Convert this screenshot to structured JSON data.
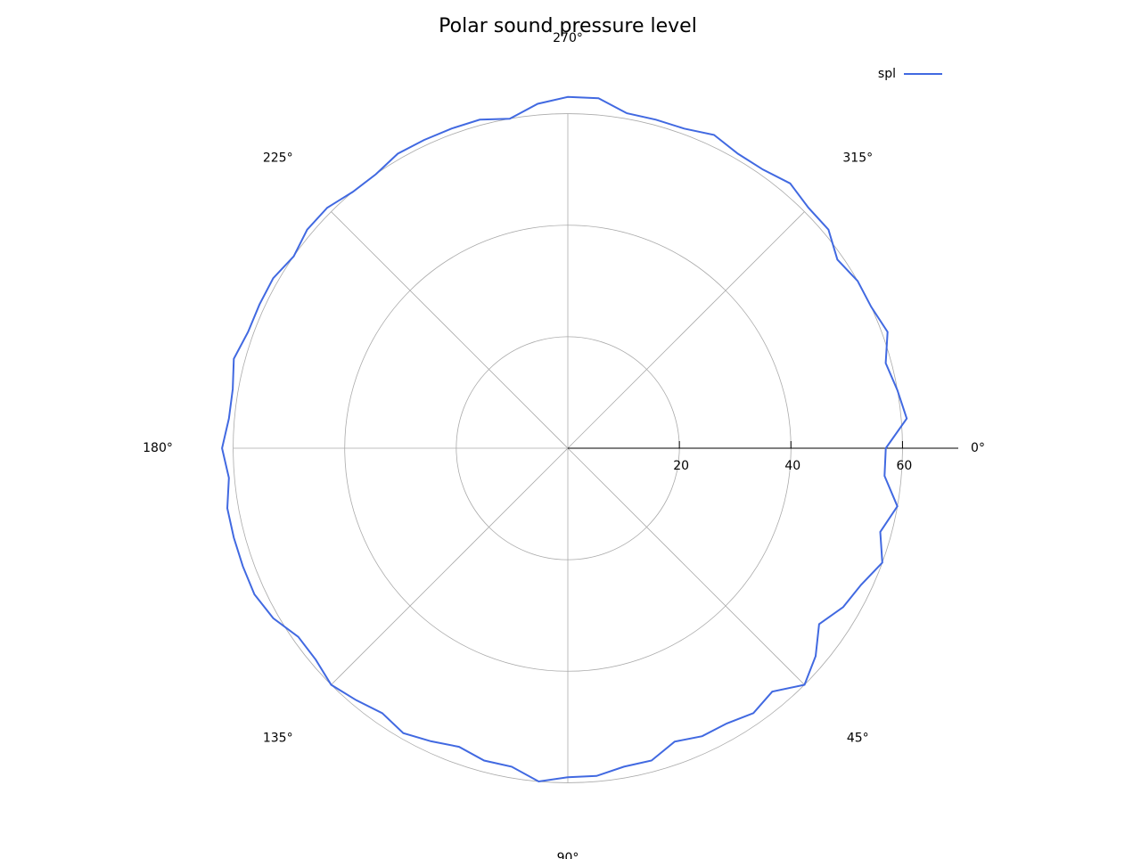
{
  "chart_data": {
    "type": "polar",
    "title": "Polar sound pressure level",
    "theta": [
      0,
      5,
      10,
      15,
      20,
      25,
      30,
      35,
      40,
      45,
      50,
      55,
      60,
      65,
      70,
      75,
      80,
      85,
      90,
      95,
      100,
      105,
      110,
      115,
      120,
      125,
      130,
      135,
      140,
      145,
      150,
      155,
      160,
      165,
      170,
      175,
      180,
      185,
      190,
      195,
      200,
      205,
      210,
      215,
      220,
      225,
      230,
      235,
      240,
      245,
      250,
      255,
      260,
      265,
      270,
      275,
      280,
      285,
      290,
      295,
      300,
      305,
      310,
      315,
      320,
      325,
      330,
      335,
      340,
      345,
      350,
      355
    ],
    "series": [
      {
        "name": "spl",
        "color": "#4169e1",
        "values": [
          57,
          57,
          60,
          58,
          60,
          58,
          57,
          55,
          58,
          60,
          57,
          58,
          57,
          57,
          56,
          58,
          58,
          59,
          59,
          60,
          58,
          58,
          57,
          58,
          59,
          58,
          59,
          60,
          59,
          59,
          61,
          62,
          62,
          62,
          62,
          61,
          62,
          61,
          61,
          62,
          61,
          61,
          61,
          60,
          61,
          61,
          60,
          60,
          61,
          61,
          61,
          61,
          60,
          62,
          63,
          63,
          61,
          61,
          61,
          62,
          61,
          61,
          62,
          61,
          61,
          59,
          60,
          60,
          61,
          59,
          60,
          61
        ]
      }
    ],
    "rlim": [
      0,
      70
    ],
    "rticks": [
      20,
      40,
      60
    ],
    "thetaticks": [
      {
        "value": 0,
        "label": "0°"
      },
      {
        "value": 45,
        "label": "45°"
      },
      {
        "value": 90,
        "label": "90°"
      },
      {
        "value": 135,
        "label": "135°"
      },
      {
        "value": 180,
        "label": "180°"
      },
      {
        "value": 225,
        "label": "225°"
      },
      {
        "value": 270,
        "label": "270°"
      },
      {
        "value": 315,
        "label": "315°"
      }
    ],
    "grid": true,
    "legend": "upper right"
  }
}
